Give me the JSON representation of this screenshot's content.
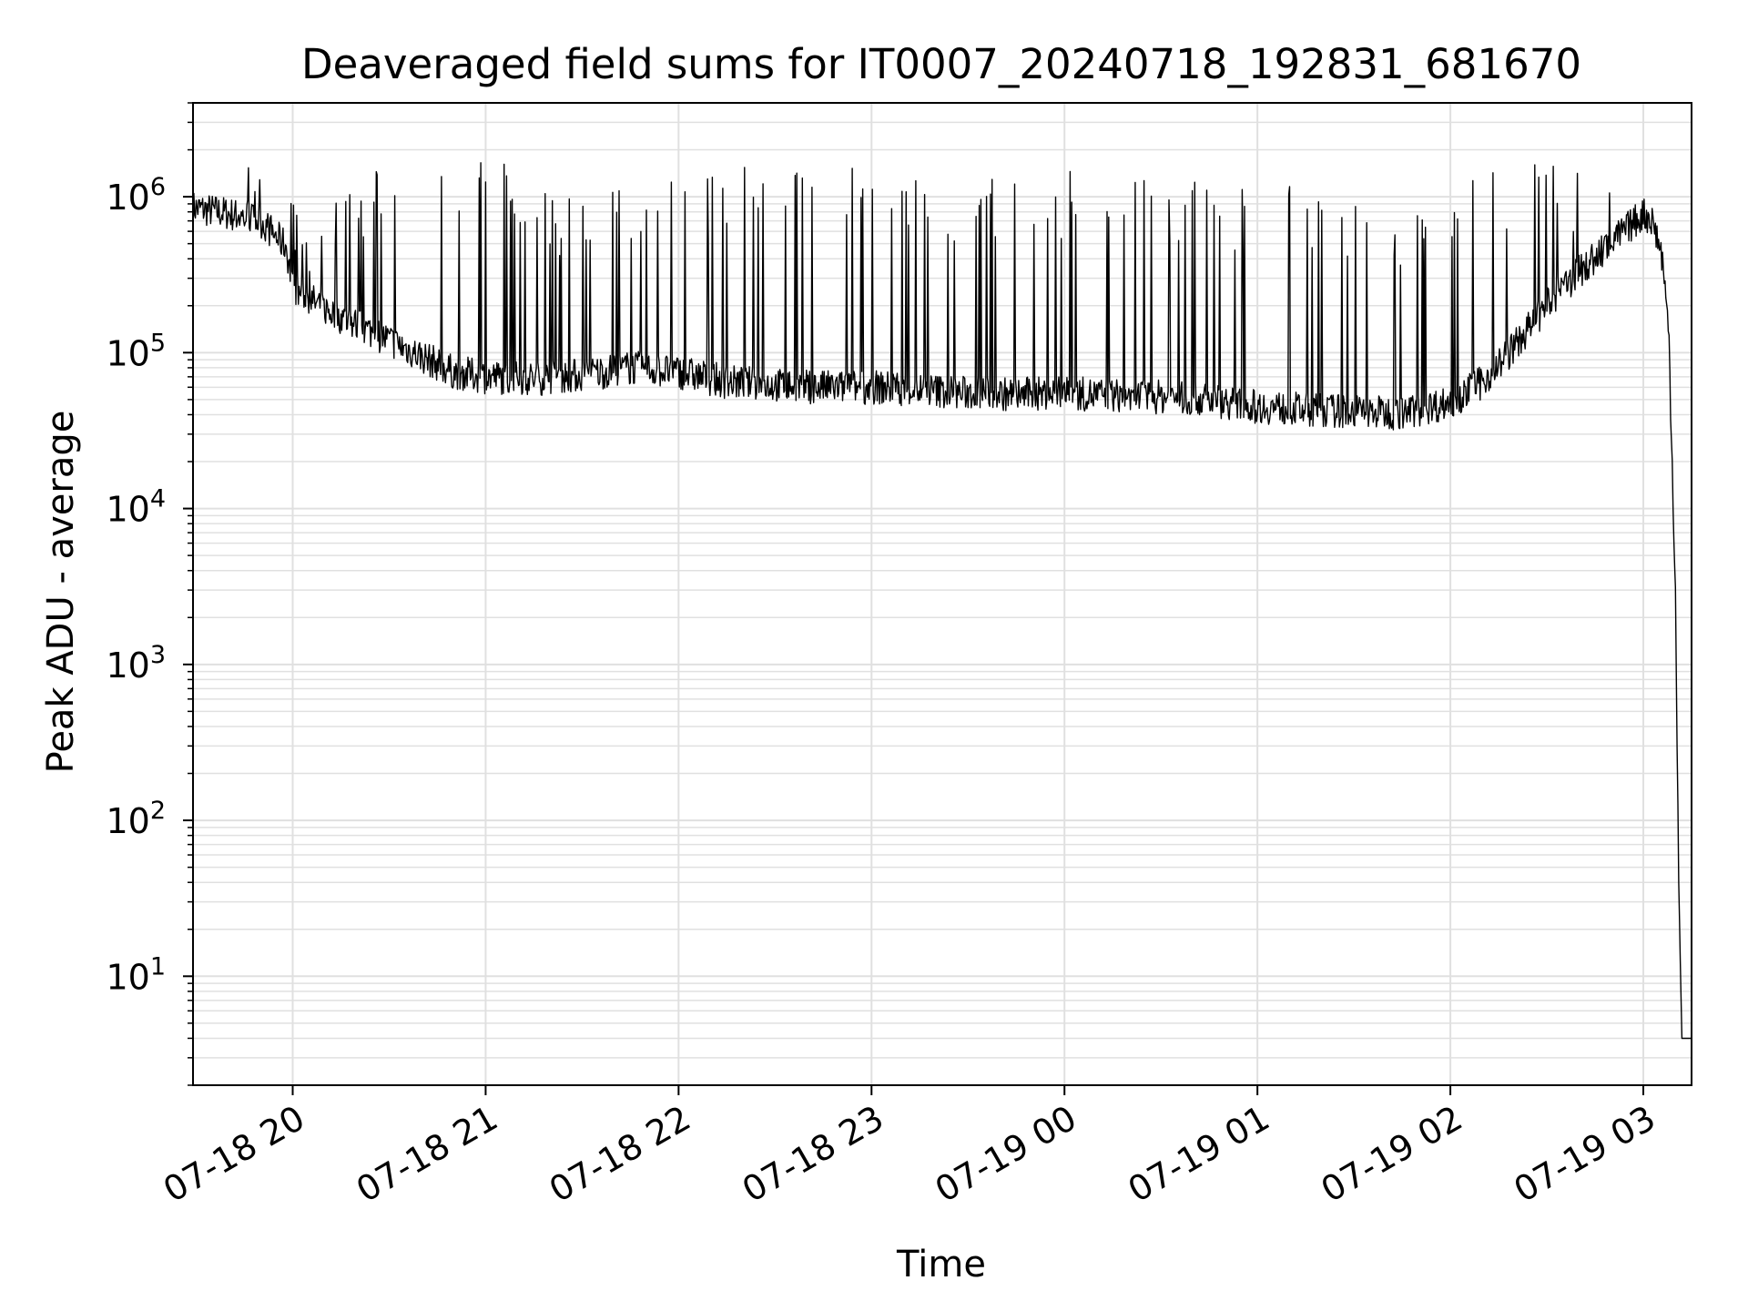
{
  "chart_data": {
    "type": "line",
    "title": "Deaveraged field sums for IT0007_20240718_192831_681670",
    "xlabel": "Time",
    "ylabel": "Peak ADU - average",
    "yscale": "log",
    "grid": true,
    "colors": {
      "line": "#000000",
      "grid": "#e0e0e0",
      "frame": "#000000"
    },
    "xlim": [
      "07-18 19:29",
      "07-19 03:15"
    ],
    "ylim": [
      2,
      4000000
    ],
    "x_ticks": [
      "07-18 20",
      "07-18 21",
      "07-18 22",
      "07-18 23",
      "07-19 00",
      "07-19 01",
      "07-19 02",
      "07-19 03"
    ],
    "y_ticks": [
      {
        "base": "10",
        "exp": "1",
        "value": 10
      },
      {
        "base": "10",
        "exp": "2",
        "value": 100
      },
      {
        "base": "10",
        "exp": "3",
        "value": 1000
      },
      {
        "base": "10",
        "exp": "4",
        "value": 10000
      },
      {
        "base": "10",
        "exp": "5",
        "value": 100000
      },
      {
        "base": "10",
        "exp": "6",
        "value": 1000000
      }
    ],
    "series": [
      {
        "baseline": {
          "x": [
            "07-18 19:29",
            "07-18 19:40",
            "07-18 19:50",
            "07-18 19:58",
            "07-18 20:00",
            "07-18 20:10",
            "07-18 20:20",
            "07-18 20:30",
            "07-18 20:40",
            "07-18 20:50",
            "07-18 21:00",
            "07-18 21:15",
            "07-18 21:30",
            "07-18 21:45",
            "07-18 22:00",
            "07-18 22:15",
            "07-18 22:30",
            "07-18 22:45",
            "07-18 23:00",
            "07-18 23:15",
            "07-18 23:30",
            "07-18 23:45",
            "07-19 00:00",
            "07-19 00:15",
            "07-19 00:30",
            "07-19 00:45",
            "07-19 01:00",
            "07-19 01:15",
            "07-19 01:30",
            "07-19 01:45",
            "07-19 02:00",
            "07-19 02:10",
            "07-19 02:20",
            "07-19 02:30",
            "07-19 02:40",
            "07-19 02:50",
            "07-19 03:00",
            "07-19 03:03",
            "07-19 03:06",
            "07-19 03:08",
            "07-19 03:10",
            "07-19 03:11",
            "07-19 03:12",
            "07-19 03:13",
            "07-19 03:15"
          ],
          "y": [
            850000,
            780000,
            700000,
            480000,
            260000,
            190000,
            150000,
            120000,
            95000,
            75000,
            70000,
            68000,
            72000,
            80000,
            75000,
            65000,
            62000,
            60000,
            60000,
            58000,
            55000,
            54000,
            55000,
            53000,
            52000,
            50000,
            45000,
            43000,
            42000,
            41000,
            48000,
            65000,
            110000,
            200000,
            330000,
            500000,
            780000,
            700000,
            400000,
            120000,
            3000,
            40,
            4,
            4,
            4
          ]
        },
        "spikes": {
          "x": [
            "07-18 19:45",
            "07-18 19:53",
            "07-18 20:07",
            "07-18 20:18",
            "07-18 20:28",
            "07-18 20:33",
            "07-18 20:40",
            "07-18 20:45",
            "07-18 20:50",
            "07-18 20:55",
            "07-18 21:02",
            "07-18 21:10",
            "07-18 21:20",
            "07-18 21:27",
            "07-18 21:35",
            "07-18 21:42",
            "07-18 21:55",
            "07-18 22:05",
            "07-18 22:12",
            "07-18 22:25",
            "07-18 22:35",
            "07-18 22:45",
            "07-18 22:50",
            "07-18 22:57",
            "07-18 23:05",
            "07-18 23:15",
            "07-18 23:25",
            "07-18 23:40",
            "07-18 23:50",
            "07-19 00:05",
            "07-19 00:15",
            "07-19 00:25",
            "07-19 00:40",
            "07-19 00:55",
            "07-19 01:08",
            "07-19 01:25",
            "07-19 01:40",
            "07-19 01:55",
            "07-19 02:05",
            "07-19 02:15",
            "07-19 02:30",
            "07-19 02:35",
            "07-19 02:45"
          ],
          "y": [
            1600000,
            1200000,
            900000,
            1300000,
            1700000,
            1300000,
            2100000,
            1900000,
            1800000,
            1600000,
            1900000,
            1400000,
            1200000,
            1000000,
            1400000,
            1100000,
            1300000,
            1600000,
            1300000,
            1700000,
            1600000,
            1700000,
            1600000,
            1500000,
            1500000,
            1400000,
            1200000,
            1400000,
            1300000,
            1500000,
            1100000,
            1400000,
            1300000,
            1200000,
            1200000,
            1000000,
            900000,
            1000000,
            1500000,
            1600000,
            1700000,
            1500000,
            1500000
          ]
        }
      }
    ]
  }
}
